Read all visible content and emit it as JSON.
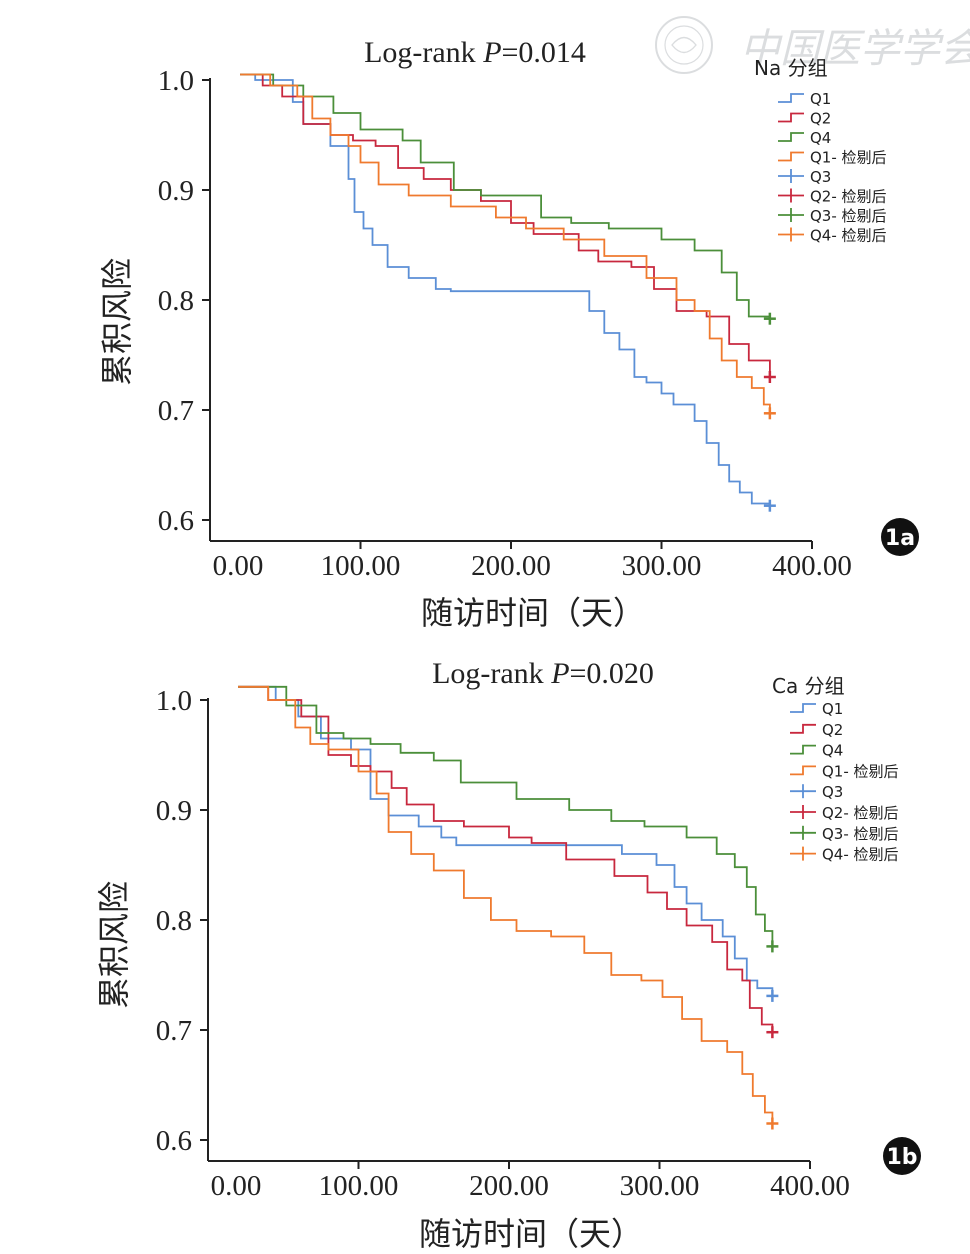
{
  "watermark": "中国医学学会",
  "shared": {
    "xticks": [
      "0.00",
      "100.00",
      "200.00",
      "300.00",
      "400.00"
    ],
    "yticks": [
      "0.6",
      "0.7",
      "0.8",
      "0.9",
      "1.0"
    ],
    "xlabel": "随访时间（天）",
    "ylabel": "累积风险",
    "legend_labels": [
      "Q1",
      "Q2",
      "Q4",
      "Q1- 检剔后",
      "Q3",
      "Q2- 检剔后",
      "Q3- 检剔后",
      "Q4- 检剔后"
    ],
    "colors": {
      "Q1": "#5b8fd6",
      "Q2": "#c8283e",
      "Q3": "#4b8f3a",
      "Q4": "#ef7a2e"
    }
  },
  "chart_data": [
    {
      "type": "line",
      "panel": "1a",
      "title_prefix": "Log-rank ",
      "title_p": "P",
      "title_suffix": "=0.014",
      "legend_title": "Na 分组",
      "xlim": [
        0,
        400
      ],
      "ylim": [
        0.6,
        1.0
      ],
      "series": [
        {
          "name": "Q1",
          "color": "#5b8fd6",
          "censor_x": 372,
          "censor_y": 0.613,
          "points": [
            [
              20,
              1.005
            ],
            [
              30,
              1.0
            ],
            [
              55,
              0.98
            ],
            [
              62,
              0.96
            ],
            [
              80,
              0.94
            ],
            [
              92,
              0.91
            ],
            [
              96,
              0.88
            ],
            [
              102,
              0.865
            ],
            [
              108,
              0.85
            ],
            [
              118,
              0.83
            ],
            [
              132,
              0.82
            ],
            [
              150,
              0.81
            ],
            [
              160,
              0.808
            ],
            [
              245,
              0.808
            ],
            [
              252,
              0.79
            ],
            [
              262,
              0.77
            ],
            [
              272,
              0.755
            ],
            [
              282,
              0.73
            ],
            [
              290,
              0.725
            ],
            [
              300,
              0.715
            ],
            [
              308,
              0.705
            ],
            [
              322,
              0.69
            ],
            [
              330,
              0.67
            ],
            [
              338,
              0.65
            ],
            [
              345,
              0.635
            ],
            [
              352,
              0.625
            ],
            [
              360,
              0.615
            ],
            [
              372,
              0.613
            ]
          ]
        },
        {
          "name": "Q2",
          "color": "#c8283e",
          "censor_x": 372,
          "censor_y": 0.73,
          "points": [
            [
              20,
              1.005
            ],
            [
              35,
              0.995
            ],
            [
              48,
              0.985
            ],
            [
              62,
              0.96
            ],
            [
              80,
              0.95
            ],
            [
              95,
              0.945
            ],
            [
              110,
              0.94
            ],
            [
              125,
              0.92
            ],
            [
              142,
              0.91
            ],
            [
              160,
              0.9
            ],
            [
              180,
              0.89
            ],
            [
              200,
              0.87
            ],
            [
              215,
              0.86
            ],
            [
              245,
              0.845
            ],
            [
              258,
              0.835
            ],
            [
              280,
              0.83
            ],
            [
              295,
              0.81
            ],
            [
              310,
              0.79
            ],
            [
              330,
              0.785
            ],
            [
              345,
              0.76
            ],
            [
              358,
              0.745
            ],
            [
              372,
              0.73
            ]
          ]
        },
        {
          "name": "Q3",
          "color": "#4b8f3a",
          "censor_x": 372,
          "censor_y": 0.783,
          "points": [
            [
              20,
              1.005
            ],
            [
              42,
              0.995
            ],
            [
              62,
              0.985
            ],
            [
              82,
              0.97
            ],
            [
              100,
              0.955
            ],
            [
              128,
              0.945
            ],
            [
              140,
              0.925
            ],
            [
              162,
              0.9
            ],
            [
              180,
              0.895
            ],
            [
              220,
              0.875
            ],
            [
              240,
              0.87
            ],
            [
              265,
              0.865
            ],
            [
              300,
              0.855
            ],
            [
              322,
              0.845
            ],
            [
              340,
              0.825
            ],
            [
              350,
              0.8
            ],
            [
              358,
              0.785
            ],
            [
              372,
              0.783
            ]
          ]
        },
        {
          "name": "Q4",
          "color": "#ef7a2e",
          "censor_x": 372,
          "censor_y": 0.697,
          "points": [
            [
              20,
              1.005
            ],
            [
              40,
              0.995
            ],
            [
              58,
              0.985
            ],
            [
              68,
              0.965
            ],
            [
              80,
              0.95
            ],
            [
              92,
              0.94
            ],
            [
              100,
              0.925
            ],
            [
              112,
              0.905
            ],
            [
              132,
              0.895
            ],
            [
              160,
              0.885
            ],
            [
              190,
              0.875
            ],
            [
              210,
              0.865
            ],
            [
              235,
              0.855
            ],
            [
              262,
              0.84
            ],
            [
              290,
              0.82
            ],
            [
              310,
              0.8
            ],
            [
              322,
              0.79
            ],
            [
              332,
              0.765
            ],
            [
              340,
              0.745
            ],
            [
              350,
              0.73
            ],
            [
              360,
              0.72
            ],
            [
              368,
              0.705
            ],
            [
              372,
              0.697
            ]
          ]
        }
      ]
    },
    {
      "type": "line",
      "panel": "1b",
      "title_prefix": "Log-rank ",
      "title_p": "P",
      "title_suffix": "=0.020",
      "legend_title": "Ca 分组",
      "xlim": [
        0,
        400
      ],
      "ylim": [
        0.6,
        1.0
      ],
      "series": [
        {
          "name": "Q1",
          "color": "#5b8fd6",
          "censor_x": 375,
          "censor_y": 0.731,
          "points": [
            [
              20,
              1.012
            ],
            [
              45,
              1.0
            ],
            [
              60,
              0.985
            ],
            [
              75,
              0.965
            ],
            [
              95,
              0.955
            ],
            [
              108,
              0.91
            ],
            [
              120,
              0.895
            ],
            [
              140,
              0.885
            ],
            [
              155,
              0.875
            ],
            [
              165,
              0.868
            ],
            [
              260,
              0.868
            ],
            [
              275,
              0.86
            ],
            [
              298,
              0.85
            ],
            [
              310,
              0.83
            ],
            [
              318,
              0.815
            ],
            [
              328,
              0.8
            ],
            [
              342,
              0.785
            ],
            [
              350,
              0.765
            ],
            [
              358,
              0.745
            ],
            [
              365,
              0.738
            ],
            [
              375,
              0.731
            ]
          ]
        },
        {
          "name": "Q2",
          "color": "#c8283e",
          "censor_x": 375,
          "censor_y": 0.698,
          "points": [
            [
              20,
              1.012
            ],
            [
              40,
              1.0
            ],
            [
              62,
              0.985
            ],
            [
              80,
              0.95
            ],
            [
              95,
              0.94
            ],
            [
              108,
              0.935
            ],
            [
              122,
              0.92
            ],
            [
              132,
              0.905
            ],
            [
              150,
              0.89
            ],
            [
              170,
              0.885
            ],
            [
              200,
              0.875
            ],
            [
              215,
              0.87
            ],
            [
              238,
              0.855
            ],
            [
              270,
              0.84
            ],
            [
              292,
              0.825
            ],
            [
              305,
              0.81
            ],
            [
              318,
              0.795
            ],
            [
              335,
              0.78
            ],
            [
              345,
              0.755
            ],
            [
              355,
              0.745
            ],
            [
              360,
              0.72
            ],
            [
              368,
              0.705
            ],
            [
              375,
              0.698
            ]
          ]
        },
        {
          "name": "Q3",
          "color": "#4b8f3a",
          "censor_x": 375,
          "censor_y": 0.776,
          "points": [
            [
              20,
              1.012
            ],
            [
              52,
              0.995
            ],
            [
              72,
              0.97
            ],
            [
              90,
              0.965
            ],
            [
              108,
              0.96
            ],
            [
              128,
              0.952
            ],
            [
              150,
              0.945
            ],
            [
              168,
              0.925
            ],
            [
              205,
              0.91
            ],
            [
              240,
              0.9
            ],
            [
              268,
              0.89
            ],
            [
              290,
              0.885
            ],
            [
              318,
              0.875
            ],
            [
              338,
              0.86
            ],
            [
              350,
              0.848
            ],
            [
              358,
              0.83
            ],
            [
              364,
              0.805
            ],
            [
              370,
              0.79
            ],
            [
              375,
              0.776
            ]
          ]
        },
        {
          "name": "Q4",
          "color": "#ef7a2e",
          "censor_x": 375,
          "censor_y": 0.615,
          "points": [
            [
              20,
              1.012
            ],
            [
              40,
              1.0
            ],
            [
              58,
              0.975
            ],
            [
              68,
              0.96
            ],
            [
              80,
              0.955
            ],
            [
              100,
              0.935
            ],
            [
              112,
              0.915
            ],
            [
              120,
              0.88
            ],
            [
              135,
              0.86
            ],
            [
              150,
              0.845
            ],
            [
              170,
              0.82
            ],
            [
              188,
              0.8
            ],
            [
              205,
              0.79
            ],
            [
              228,
              0.785
            ],
            [
              250,
              0.77
            ],
            [
              268,
              0.75
            ],
            [
              288,
              0.745
            ],
            [
              302,
              0.73
            ],
            [
              315,
              0.71
            ],
            [
              328,
              0.69
            ],
            [
              345,
              0.68
            ],
            [
              355,
              0.66
            ],
            [
              362,
              0.64
            ],
            [
              370,
              0.625
            ],
            [
              375,
              0.615
            ]
          ]
        }
      ]
    }
  ]
}
